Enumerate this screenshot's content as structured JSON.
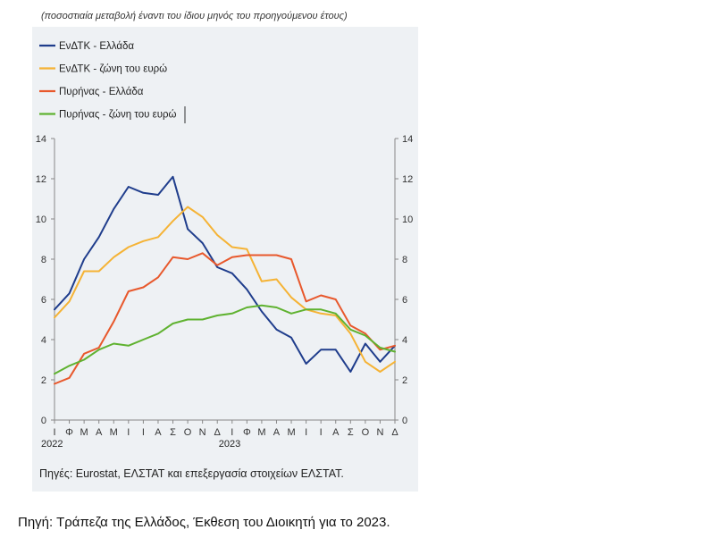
{
  "chart_data": {
    "type": "line",
    "title": "",
    "subtitle": "(ποσοστιαία μεταβολή έναντι του ίδιου μηνός του προηγούμενου έτους)",
    "ylim": [
      0,
      14
    ],
    "yticks": [
      "0",
      "2",
      "4",
      "6",
      "8",
      "10",
      "12",
      "14"
    ],
    "ytick_values": [
      0,
      2,
      4,
      6,
      8,
      10,
      12,
      14
    ],
    "categories": [
      "Ι",
      "Φ",
      "Μ",
      "Α",
      "Μ",
      "Ι",
      "Ι",
      "Α",
      "Σ",
      "Ο",
      "Ν",
      "Δ",
      "Ι",
      "Φ",
      "Μ",
      "Α",
      "Μ",
      "Ι",
      "Ι",
      "Α",
      "Σ",
      "Ο",
      "Ν",
      "Δ"
    ],
    "years": [
      "2022",
      "2023"
    ],
    "series": [
      {
        "name": "ΕνΔΤΚ - Ελλάδα",
        "color": "#1f3d8c",
        "values": [
          5.5,
          6.3,
          8.0,
          9.1,
          10.5,
          11.6,
          11.3,
          11.2,
          12.1,
          9.5,
          8.8,
          7.6,
          7.3,
          6.5,
          5.4,
          4.5,
          4.1,
          2.8,
          3.5,
          3.5,
          2.4,
          3.8,
          2.9,
          3.7
        ]
      },
      {
        "name": "ΕνΔΤΚ - ζώνη του ευρώ",
        "color": "#f5b335",
        "values": [
          5.1,
          5.9,
          7.4,
          7.4,
          8.1,
          8.6,
          8.9,
          9.1,
          9.9,
          10.6,
          10.1,
          9.2,
          8.6,
          8.5,
          6.9,
          7.0,
          6.1,
          5.5,
          5.3,
          5.2,
          4.3,
          2.9,
          2.4,
          2.9
        ]
      },
      {
        "name": "Πυρήνας - Ελλάδα",
        "color": "#e8582c",
        "values": [
          1.8,
          2.1,
          3.3,
          3.6,
          4.9,
          6.4,
          6.6,
          7.1,
          8.1,
          8.0,
          8.3,
          7.7,
          8.1,
          8.2,
          8.2,
          8.2,
          8.0,
          5.9,
          6.2,
          6.0,
          4.7,
          4.3,
          3.5,
          3.7
        ]
      },
      {
        "name": "Πυρήνας - ζώνη του ευρώ",
        "color": "#5fb230",
        "values": [
          2.3,
          2.7,
          3.0,
          3.5,
          3.8,
          3.7,
          4.0,
          4.3,
          4.8,
          5.0,
          5.0,
          5.2,
          5.3,
          5.6,
          5.7,
          5.6,
          5.3,
          5.5,
          5.5,
          5.3,
          4.5,
          4.2,
          3.6,
          3.4
        ]
      }
    ]
  },
  "source_note": "Πηγές: Eurostat, ΕΛΣΤΑΤ και επεξεργασία στοιχείων ΕΛΣΤΑΤ.",
  "caption": "Πηγή: Τράπεζα της Ελλάδος, Έκθεση του Διοικητή για το 2023."
}
